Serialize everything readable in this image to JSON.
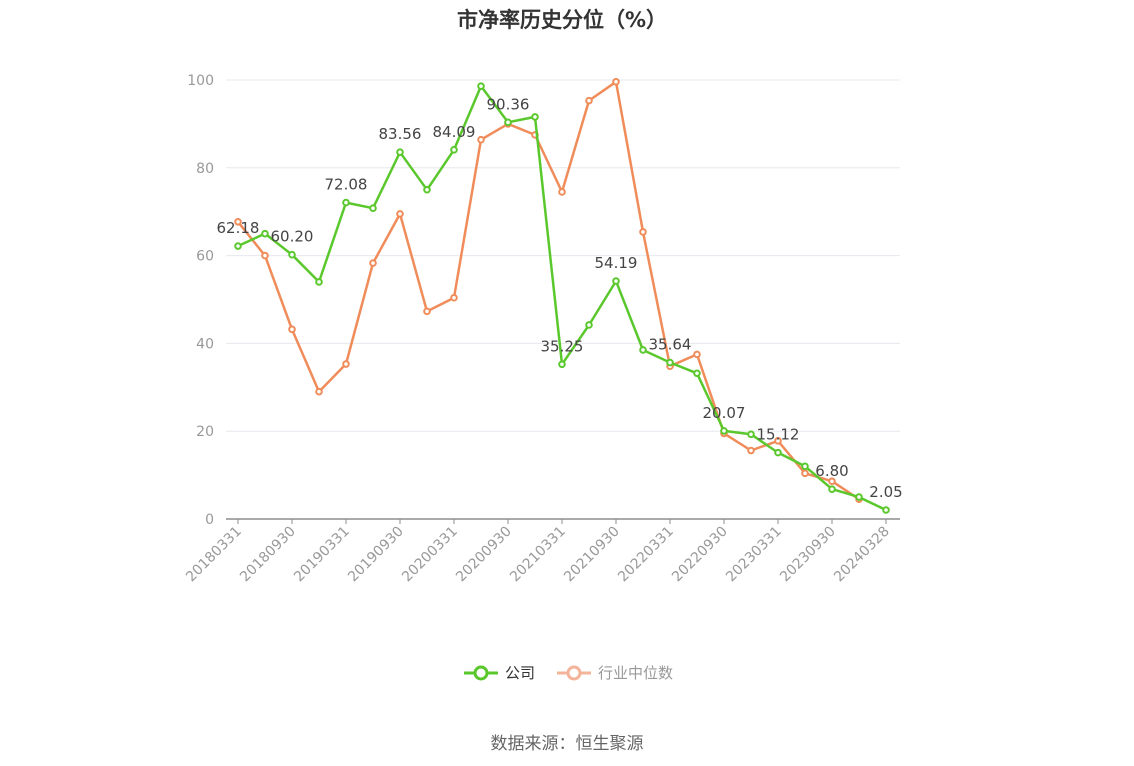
{
  "title": "市净率历史分位（%）",
  "source": "数据来源：恒生聚源",
  "colors": {
    "company": "#5ac82d",
    "industry": "#f08c5a",
    "grid": "#e6e8ee",
    "axis": "#8e8e8e",
    "text": "#999999"
  },
  "legend": [
    {
      "label": "公司",
      "color": "#5ac82d"
    },
    {
      "label": "行业中位数",
      "color": "#f3b49a"
    }
  ],
  "chart_data": {
    "type": "line",
    "title": "市净率历史分位（%）",
    "ylim": [
      0,
      100
    ],
    "yticks": [
      0,
      20,
      40,
      60,
      80,
      100
    ],
    "grid": true,
    "legend_position": "bottom",
    "x": [
      "20180331",
      "20180630",
      "20180930",
      "20181231",
      "20190331",
      "20190630",
      "20190930",
      "20191231",
      "20200331",
      "20200630",
      "20200930",
      "20201231",
      "20210331",
      "20210630",
      "20210930",
      "20211231",
      "20220331",
      "20220630",
      "20220930",
      "20221231",
      "20230331",
      "20230630",
      "20230930",
      "20231231",
      "20240328"
    ],
    "xtick_labels": [
      "20180331",
      "20180930",
      "20190331",
      "20190930",
      "20200331",
      "20200930",
      "20210331",
      "20210930",
      "20220331",
      "20220930",
      "20230331",
      "20230930",
      "20240328"
    ],
    "series": [
      {
        "name": "公司",
        "color": "#5ac82d",
        "values": [
          62.18,
          65.0,
          60.2,
          54.0,
          72.08,
          70.8,
          83.56,
          75.0,
          84.09,
          98.6,
          90.36,
          91.6,
          35.25,
          44.2,
          54.19,
          38.5,
          35.64,
          33.2,
          20.07,
          19.3,
          15.12,
          12.0,
          6.8,
          5.0,
          2.05
        ],
        "labels": [
          "62.18",
          "",
          "60.20",
          "",
          "72.08",
          "",
          "83.56",
          "",
          "84.09",
          "",
          "90.36",
          "",
          "35.25",
          "",
          "54.19",
          "",
          "35.64",
          "",
          "20.07",
          "",
          "15.12",
          "",
          "6.80",
          "",
          "2.05"
        ]
      },
      {
        "name": "行业中位数",
        "color": "#f08c5a",
        "values": [
          67.7,
          60.0,
          43.2,
          29.0,
          35.3,
          58.3,
          69.5,
          47.3,
          50.4,
          86.4,
          90.0,
          87.5,
          74.5,
          95.3,
          99.6,
          65.4,
          34.8,
          37.5,
          19.5,
          15.6,
          17.8,
          10.4,
          8.6,
          4.5,
          null
        ]
      }
    ]
  }
}
